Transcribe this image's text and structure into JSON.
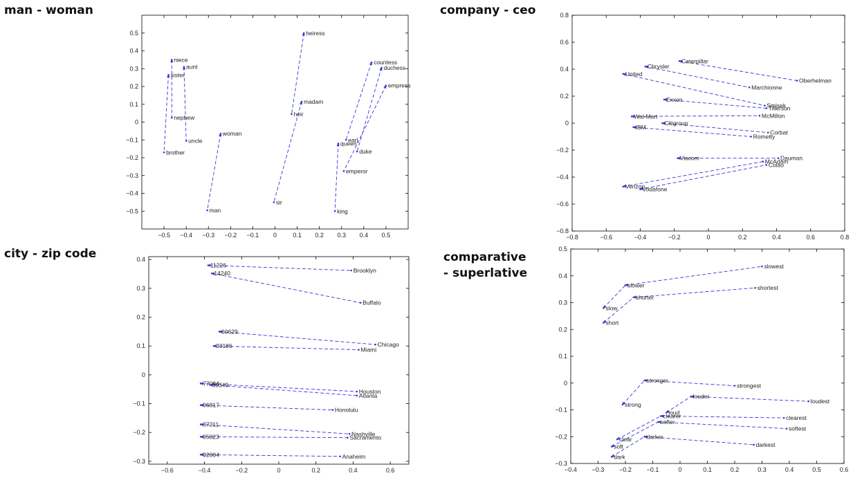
{
  "titles": {
    "p1": "man - woman",
    "p2": "company - ceo",
    "p3": "city - zip code",
    "p4_line1": "comparative",
    "p4_line2": "- superlative"
  },
  "colors": {
    "line": "#3333dd",
    "axis": "#000000",
    "text": "#222222"
  },
  "chart_data": [
    {
      "id": "p1",
      "type": "scatter",
      "title": "man - woman",
      "xlim": [
        -0.6,
        0.6
      ],
      "ylim": [
        -0.6,
        0.6
      ],
      "xticks": [
        -0.5,
        -0.4,
        -0.3,
        -0.2,
        -0.1,
        0,
        0.1,
        0.2,
        0.3,
        0.4,
        0.5
      ],
      "xtick_labels": [
        "−0.5",
        "−0.4",
        "−0.3",
        "−0.2",
        "−0.1",
        "0",
        "0.1",
        "0.2",
        "0.3",
        "0.4",
        "0.5"
      ],
      "yticks": [
        -0.5,
        -0.4,
        -0.3,
        -0.2,
        -0.1,
        0,
        0.1,
        0.2,
        0.3,
        0.4,
        0.5
      ],
      "ytick_labels": [
        "−0.5",
        "−0.4",
        "−0.3",
        "−0.2",
        "−0.1",
        "0",
        "0.1",
        "0.2",
        "0.3",
        "0.4",
        "0.5"
      ],
      "points": [
        {
          "label": "niece",
          "x": -0.465,
          "y": 0.35
        },
        {
          "label": "aunt",
          "x": -0.41,
          "y": 0.31
        },
        {
          "label": "sister",
          "x": -0.48,
          "y": 0.265
        },
        {
          "label": "nephew",
          "x": -0.465,
          "y": 0.025
        },
        {
          "label": "uncle",
          "x": -0.4,
          "y": -0.105
        },
        {
          "label": "brother",
          "x": -0.5,
          "y": -0.17
        },
        {
          "label": "woman",
          "x": -0.245,
          "y": -0.065
        },
        {
          "label": "man",
          "x": -0.305,
          "y": -0.495
        },
        {
          "label": "heiress",
          "x": 0.13,
          "y": 0.5
        },
        {
          "label": "madam",
          "x": 0.12,
          "y": 0.115
        },
        {
          "label": "heir",
          "x": 0.075,
          "y": 0.045
        },
        {
          "label": "sir",
          "x": -0.005,
          "y": -0.45
        },
        {
          "label": "countess",
          "x": 0.435,
          "y": 0.335
        },
        {
          "label": "duchess",
          "x": 0.48,
          "y": 0.305
        },
        {
          "label": "empress",
          "x": 0.5,
          "y": 0.205
        },
        {
          "label": "earl",
          "x": 0.32,
          "y": -0.1
        },
        {
          "label": "queen",
          "x": 0.285,
          "y": -0.12
        },
        {
          "label": "duke",
          "x": 0.37,
          "y": -0.165
        },
        {
          "label": "emperor",
          "x": 0.31,
          "y": -0.275
        },
        {
          "label": "king",
          "x": 0.27,
          "y": -0.5
        }
      ],
      "pairs": [
        [
          "niece",
          "nephew"
        ],
        [
          "aunt",
          "uncle"
        ],
        [
          "sister",
          "brother"
        ],
        [
          "woman",
          "man"
        ],
        [
          "heiress",
          "heir"
        ],
        [
          "madam",
          "sir"
        ],
        [
          "countess",
          "earl"
        ],
        [
          "duchess",
          "duke"
        ],
        [
          "empress",
          "emperor"
        ],
        [
          "queen",
          "king"
        ]
      ]
    },
    {
      "id": "p2",
      "type": "scatter",
      "title": "company - ceo",
      "xlim": [
        -0.8,
        0.8
      ],
      "ylim": [
        -0.8,
        0.8
      ],
      "xticks": [
        -0.8,
        -0.6,
        -0.4,
        -0.2,
        0,
        0.2,
        0.4,
        0.6,
        0.8
      ],
      "xtick_labels": [
        "−0.8",
        "−0.6",
        "−0.4",
        "−0.2",
        "0",
        "0.2",
        "0.4",
        "0.6",
        "0.8"
      ],
      "yticks": [
        -0.8,
        -0.6,
        -0.4,
        -0.2,
        0,
        0.2,
        0.4,
        0.6,
        0.8
      ],
      "ytick_labels": [
        "−0.8",
        "−0.6",
        "−0.4",
        "−0.2",
        "0",
        "0.2",
        "0.4",
        "0.6",
        "0.8"
      ],
      "points": [
        {
          "label": "Caterpillar",
          "x": -0.17,
          "y": 0.46
        },
        {
          "label": "Chrysler",
          "x": -0.37,
          "y": 0.42
        },
        {
          "label": "United",
          "x": -0.5,
          "y": 0.365
        },
        {
          "label": "Oberhelman",
          "x": 0.52,
          "y": 0.315
        },
        {
          "label": "Marchionne",
          "x": 0.24,
          "y": 0.265
        },
        {
          "label": "Exxon",
          "x": -0.26,
          "y": 0.175
        },
        {
          "label": "Smisek",
          "x": 0.33,
          "y": 0.13
        },
        {
          "label": "Tillerson",
          "x": 0.34,
          "y": 0.11
        },
        {
          "label": "Wal-Mart",
          "x": -0.45,
          "y": 0.05
        },
        {
          "label": "McMillon",
          "x": 0.3,
          "y": 0.055
        },
        {
          "label": "Citigroup",
          "x": -0.27,
          "y": 0.0
        },
        {
          "label": "IBM",
          "x": -0.44,
          "y": -0.03
        },
        {
          "label": "Corbat",
          "x": 0.35,
          "y": -0.07
        },
        {
          "label": "Rometty",
          "x": 0.25,
          "y": -0.1
        },
        {
          "label": "Viacom",
          "x": -0.18,
          "y": -0.26
        },
        {
          "label": "Dauman",
          "x": 0.41,
          "y": -0.26
        },
        {
          "label": "McAdam",
          "x": 0.32,
          "y": -0.285
        },
        {
          "label": "Colao",
          "x": 0.34,
          "y": -0.31
        },
        {
          "label": "Verizon",
          "x": -0.5,
          "y": -0.47
        },
        {
          "label": "Vodafone",
          "x": -0.4,
          "y": -0.49
        }
      ],
      "pairs": [
        [
          "Caterpillar",
          "Oberhelman"
        ],
        [
          "Chrysler",
          "Marchionne"
        ],
        [
          "United",
          "Smisek"
        ],
        [
          "Exxon",
          "Tillerson"
        ],
        [
          "Wal-Mart",
          "McMillon"
        ],
        [
          "Citigroup",
          "Corbat"
        ],
        [
          "IBM",
          "Rometty"
        ],
        [
          "Viacom",
          "Dauman"
        ],
        [
          "Verizon",
          "McAdam"
        ],
        [
          "Vodafone",
          "Colao"
        ]
      ]
    },
    {
      "id": "p3",
      "type": "scatter",
      "title": "city - zip code",
      "xlim": [
        -0.7,
        0.7
      ],
      "ylim": [
        -0.31,
        0.41
      ],
      "xticks": [
        -0.6,
        -0.4,
        -0.2,
        0,
        0.2,
        0.4,
        0.6
      ],
      "xtick_labels": [
        "−0.6",
        "−0.4",
        "−0.2",
        "0",
        "0.2",
        "0.4",
        "0.6"
      ],
      "yticks": [
        -0.3,
        -0.2,
        -0.1,
        0,
        0.1,
        0.2,
        0.3,
        0.4
      ],
      "ytick_labels": [
        "−0.3",
        "−0.2",
        "−0.1",
        "0",
        "0.1",
        "0.2",
        "0.3",
        "0.4"
      ],
      "points": [
        {
          "label": "11226",
          "x": -0.38,
          "y": 0.38
        },
        {
          "label": "14240",
          "x": -0.36,
          "y": 0.352
        },
        {
          "label": "Brooklyn",
          "x": 0.39,
          "y": 0.362
        },
        {
          "label": "Buffalo",
          "x": 0.44,
          "y": 0.25
        },
        {
          "label": "60629",
          "x": -0.32,
          "y": 0.15
        },
        {
          "label": "Chicago",
          "x": 0.52,
          "y": 0.105
        },
        {
          "label": "33186",
          "x": -0.35,
          "y": 0.1
        },
        {
          "label": "Miami",
          "x": 0.43,
          "y": 0.087
        },
        {
          "label": "77084",
          "x": -0.42,
          "y": -0.03
        },
        {
          "label": "30349",
          "x": -0.37,
          "y": -0.035
        },
        {
          "label": "Houston",
          "x": 0.42,
          "y": -0.058
        },
        {
          "label": "Atlanta",
          "x": 0.42,
          "y": -0.072
        },
        {
          "label": "96817",
          "x": -0.42,
          "y": -0.105
        },
        {
          "label": "Honolulu",
          "x": 0.29,
          "y": -0.122
        },
        {
          "label": "37211",
          "x": -0.42,
          "y": -0.172
        },
        {
          "label": "Nashville",
          "x": 0.38,
          "y": -0.205
        },
        {
          "label": "95823",
          "x": -0.42,
          "y": -0.215
        },
        {
          "label": "Sacramento",
          "x": 0.37,
          "y": -0.218
        },
        {
          "label": "92804",
          "x": -0.42,
          "y": -0.277
        },
        {
          "label": "Anaheim",
          "x": 0.33,
          "y": -0.283
        }
      ],
      "pairs": [
        [
          "11226",
          "Brooklyn"
        ],
        [
          "14240",
          "Buffalo"
        ],
        [
          "60629",
          "Chicago"
        ],
        [
          "33186",
          "Miami"
        ],
        [
          "77084",
          "Houston"
        ],
        [
          "30349",
          "Atlanta"
        ],
        [
          "96817",
          "Honolulu"
        ],
        [
          "37211",
          "Nashville"
        ],
        [
          "95823",
          "Sacramento"
        ],
        [
          "92804",
          "Anaheim"
        ]
      ]
    },
    {
      "id": "p4",
      "type": "scatter",
      "title": "comparative - superlative",
      "xlim": [
        -0.4,
        0.6
      ],
      "ylim": [
        -0.3,
        0.5
      ],
      "xticks": [
        -0.4,
        -0.3,
        -0.2,
        -0.1,
        0,
        0.1,
        0.2,
        0.3,
        0.4,
        0.5,
        0.6
      ],
      "xtick_labels": [
        "−0.4",
        "−0.3",
        "−0.2",
        "−0.1",
        "0",
        "0.1",
        "0.2",
        "0.3",
        "0.4",
        "0.5",
        "0.6"
      ],
      "yticks": [
        -0.3,
        -0.2,
        -0.1,
        0,
        0.1,
        0.2,
        0.3,
        0.4,
        0.5
      ],
      "ytick_labels": [
        "−0.3",
        "−0.2",
        "−0.1",
        "0",
        "0.1",
        "0.2",
        "0.3",
        "0.4",
        "0.5"
      ],
      "points": [
        {
          "label": "slowest",
          "x": 0.3,
          "y": 0.435
        },
        {
          "label": "slower",
          "x": -0.2,
          "y": 0.365
        },
        {
          "label": "shortest",
          "x": 0.275,
          "y": 0.355
        },
        {
          "label": "shorter",
          "x": -0.17,
          "y": 0.32
        },
        {
          "label": "slow",
          "x": -0.28,
          "y": 0.28
        },
        {
          "label": "short",
          "x": -0.28,
          "y": 0.225
        },
        {
          "label": "stronger",
          "x": -0.13,
          "y": 0.01
        },
        {
          "label": "strongest",
          "x": 0.2,
          "y": -0.01
        },
        {
          "label": "strong",
          "x": -0.21,
          "y": -0.08
        },
        {
          "label": "louder",
          "x": 0.04,
          "y": -0.05
        },
        {
          "label": "loudest",
          "x": 0.47,
          "y": -0.068
        },
        {
          "label": "loud",
          "x": -0.05,
          "y": -0.11
        },
        {
          "label": "clearer",
          "x": -0.07,
          "y": -0.123
        },
        {
          "label": "clearest",
          "x": 0.38,
          "y": -0.13
        },
        {
          "label": "softer",
          "x": -0.08,
          "y": -0.145
        },
        {
          "label": "softest",
          "x": 0.39,
          "y": -0.17
        },
        {
          "label": "clear",
          "x": -0.23,
          "y": -0.21
        },
        {
          "label": "darker",
          "x": -0.13,
          "y": -0.2
        },
        {
          "label": "darkest",
          "x": 0.27,
          "y": -0.23
        },
        {
          "label": "soft",
          "x": -0.25,
          "y": -0.237
        },
        {
          "label": "dark",
          "x": -0.25,
          "y": -0.275
        }
      ],
      "pairs": [
        [
          "slow",
          "slower"
        ],
        [
          "slower",
          "slowest"
        ],
        [
          "short",
          "shorter"
        ],
        [
          "shorter",
          "shortest"
        ],
        [
          "strong",
          "stronger"
        ],
        [
          "stronger",
          "strongest"
        ],
        [
          "loud",
          "louder"
        ],
        [
          "louder",
          "loudest"
        ],
        [
          "clear",
          "clearer"
        ],
        [
          "clearer",
          "clearest"
        ],
        [
          "soft",
          "softer"
        ],
        [
          "softer",
          "softest"
        ],
        [
          "dark",
          "darker"
        ],
        [
          "darker",
          "darkest"
        ]
      ]
    }
  ]
}
